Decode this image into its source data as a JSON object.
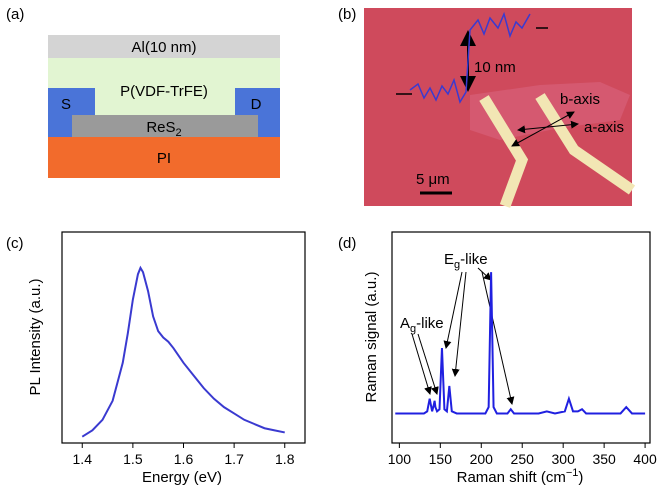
{
  "panel_labels": [
    "(a)",
    "(b)",
    "(c)",
    "(d)"
  ],
  "device": {
    "al": "Al(10 nm)",
    "pvdf": "P(VDF-TrFE)",
    "source": "S",
    "drain": "D",
    "res2": {
      "base": "ReS",
      "sub": "2"
    },
    "pi": "PI"
  },
  "micrograph": {
    "height": "10 nm",
    "b_axis": "b-axis",
    "a_axis": "a-axis",
    "scale": "5 μm"
  },
  "chart_data": [
    {
      "type": "line",
      "xlabel": "Energy (eV)",
      "ylabel": "PL Intensity (a.u.)",
      "x": [
        1.4,
        1.42,
        1.44,
        1.46,
        1.48,
        1.49,
        1.5,
        1.51,
        1.515,
        1.52,
        1.53,
        1.54,
        1.55,
        1.56,
        1.57,
        1.58,
        1.6,
        1.62,
        1.64,
        1.66,
        1.68,
        1.7,
        1.72,
        1.74,
        1.76,
        1.78,
        1.8
      ],
      "series": [
        {
          "color": "#3a3ad0",
          "values": [
            0.03,
            0.06,
            0.11,
            0.2,
            0.38,
            0.52,
            0.68,
            0.8,
            0.83,
            0.81,
            0.72,
            0.6,
            0.53,
            0.5,
            0.48,
            0.45,
            0.38,
            0.32,
            0.26,
            0.21,
            0.17,
            0.14,
            0.11,
            0.09,
            0.07,
            0.06,
            0.05
          ]
        }
      ],
      "xlim": [
        1.36,
        1.84
      ],
      "ylim": [
        0,
        1
      ],
      "xticks": [
        1.4,
        1.5,
        1.6,
        1.7,
        1.8
      ]
    },
    {
      "type": "line",
      "xlabel": {
        "text": "Raman shift (cm",
        "sup": "−1",
        "end": ")"
      },
      "ylabel": "Raman signal (a.u.)",
      "annotations": [
        {
          "base": "E",
          "sub": "g",
          "rest": "-like"
        },
        {
          "base": "A",
          "sub": "g",
          "rest": "-like"
        }
      ],
      "x": [
        95,
        130,
        134,
        137,
        140,
        142,
        143,
        144,
        146,
        149,
        152,
        155,
        158,
        161,
        164,
        170,
        205,
        209,
        212,
        215,
        219,
        232,
        236,
        240,
        270,
        280,
        290,
        302,
        307,
        312,
        318,
        323,
        328,
        370,
        377,
        384,
        400
      ],
      "series": [
        {
          "color": "#2020e0",
          "values": [
            0.14,
            0.14,
            0.15,
            0.21,
            0.15,
            0.18,
            0.2,
            0.17,
            0.15,
            0.16,
            0.45,
            0.16,
            0.15,
            0.27,
            0.15,
            0.14,
            0.14,
            0.17,
            0.81,
            0.17,
            0.14,
            0.14,
            0.16,
            0.14,
            0.14,
            0.15,
            0.14,
            0.15,
            0.21,
            0.15,
            0.15,
            0.16,
            0.14,
            0.14,
            0.17,
            0.14,
            0.14
          ]
        }
      ],
      "xlim": [
        91,
        406
      ],
      "ylim": [
        0,
        1
      ],
      "xticks": [
        100,
        150,
        200,
        250,
        300,
        350,
        400
      ]
    }
  ]
}
